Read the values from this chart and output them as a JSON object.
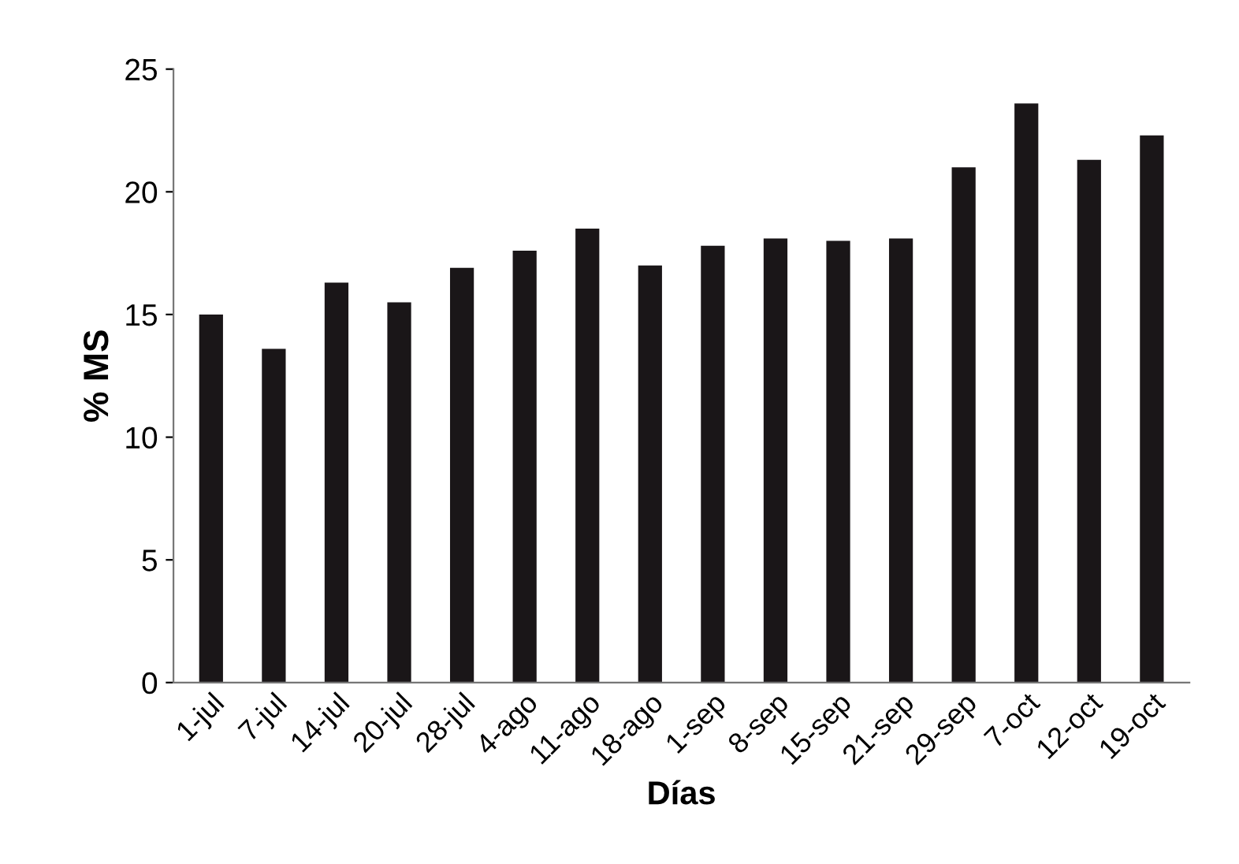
{
  "chart_data": {
    "type": "bar",
    "xlabel": "Días",
    "ylabel": "% MS",
    "categories": [
      "1-jul",
      "7-jul",
      "14-jul",
      "20-jul",
      "28-jul",
      "4-ago",
      "11-ago",
      "18-ago",
      "1-sep",
      "8-sep",
      "15-sep",
      "21-sep",
      "29-sep",
      "7-oct",
      "12-oct",
      "19-oct"
    ],
    "values": [
      15.0,
      13.6,
      16.3,
      15.5,
      16.9,
      17.6,
      18.5,
      17.0,
      17.8,
      18.1,
      18.0,
      18.1,
      21.0,
      23.6,
      21.3,
      22.3
    ],
    "color": "#1a1618",
    "ylim": [
      0,
      25
    ],
    "yticks": [
      0,
      5,
      10,
      15,
      20,
      25
    ],
    "grid": false,
    "legend": false
  }
}
